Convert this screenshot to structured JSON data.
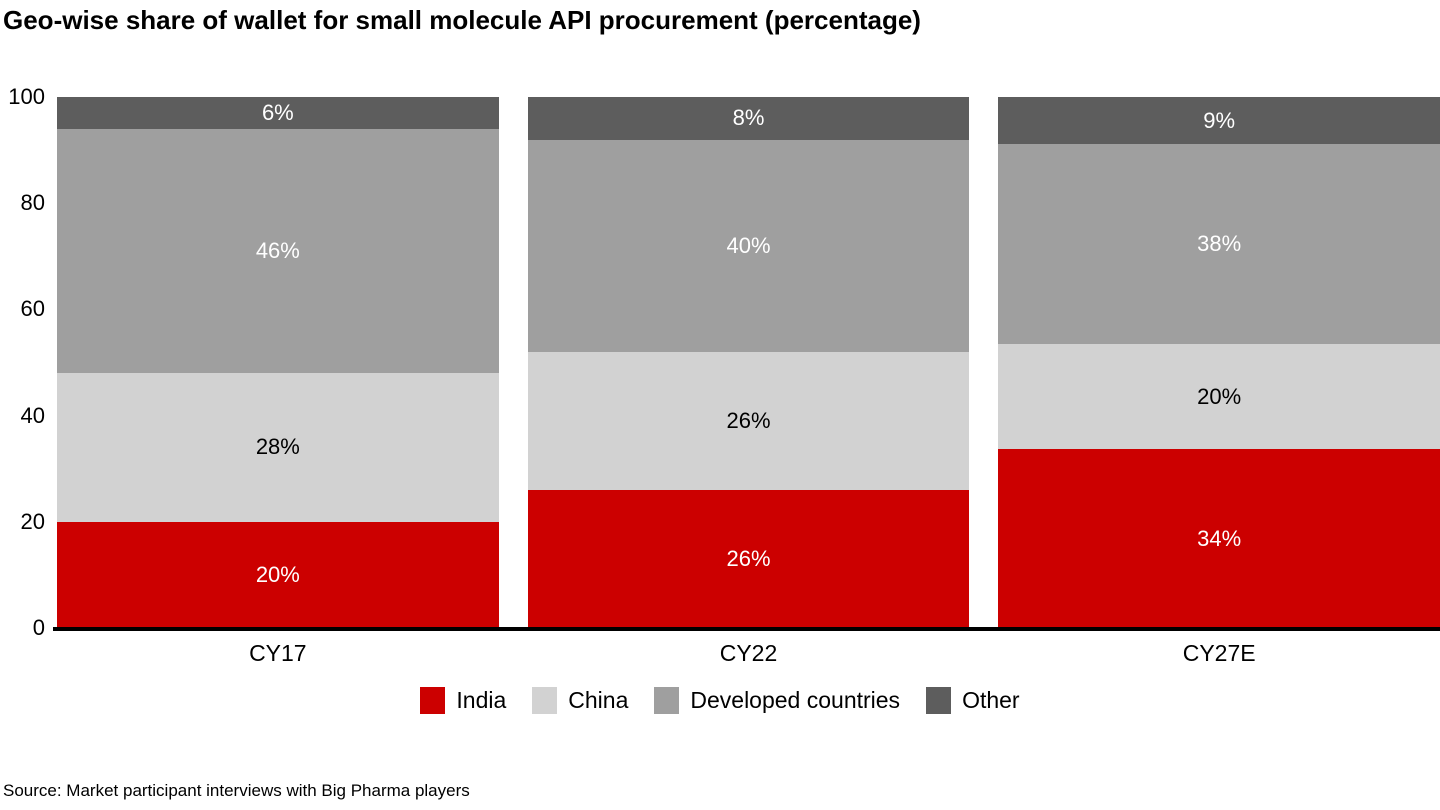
{
  "chart_data": {
    "type": "bar",
    "variant": "stacked-column",
    "title": "Geo-wise share of wallet for small molecule API procurement (percentage)",
    "categories": [
      "CY17",
      "CY22",
      "CY27E"
    ],
    "series": [
      {
        "name": "India",
        "color": "#CC0000",
        "label_color": "#FFFFFF",
        "values": [
          20,
          26,
          34
        ]
      },
      {
        "name": "China",
        "color": "#D2D2D2",
        "label_color": "#000000",
        "values": [
          28,
          26,
          20
        ]
      },
      {
        "name": "Developed countries",
        "color": "#9F9F9F",
        "label_color": "#FFFFFF",
        "values": [
          46,
          40,
          38
        ]
      },
      {
        "name": "Other",
        "color": "#5D5D5D",
        "label_color": "#FFFFFF",
        "values": [
          6,
          8,
          9
        ]
      }
    ],
    "data_label_suffix": "%",
    "y_axis": {
      "min": 0,
      "max": 100,
      "ticks": [
        0,
        20,
        40,
        60,
        80,
        100
      ]
    },
    "grid": false,
    "legend": {
      "position": "bottom",
      "entries": [
        "India",
        "China",
        "Developed countries",
        "Other"
      ]
    },
    "source": "Source: Market participant interviews with Big Pharma players"
  }
}
